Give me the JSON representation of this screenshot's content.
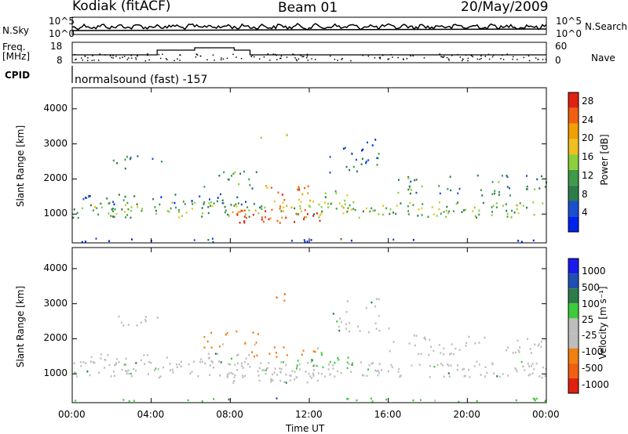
{
  "header": {
    "station": "Kodiak (fitACF)",
    "beam": "Beam 01",
    "date": "20/May/2009"
  },
  "strips": {
    "nsky_label": "N.Sky",
    "nsearch_label": "N.Search",
    "noise_ticks": [
      "10^5",
      "10^0"
    ],
    "freq_label_1": "Freq.",
    "freq_label_2": "[MHz]",
    "freq_ticks": [
      "18",
      "8"
    ],
    "nave_label": "Nave",
    "nave_ticks": [
      "60",
      "0"
    ],
    "cpid_label": "CPID",
    "cpid_text": "normalsound (fast) -157"
  },
  "colors": {
    "power": [
      "#0022ee",
      "#1a4fd0",
      "#2e7b4a",
      "#3f9a4a",
      "#8ccf3a",
      "#f0c020",
      "#f0a000",
      "#f06010",
      "#e02010"
    ],
    "velocity": [
      "#1a1aee",
      "#1f4fb0",
      "#2e7b4a",
      "#3ccc3c",
      "#bdbdbd",
      "#bdbdbd",
      "#f08010",
      "#f06010",
      "#e02010"
    ]
  },
  "chart_data": [
    {
      "type": "heatmap",
      "title": "",
      "ylabel": "Slant Range [km]",
      "xlabel": "",
      "xlim": [
        "00:00",
        "00:00"
      ],
      "ylim": [
        180,
        4600
      ],
      "yticks": [
        "4000",
        "3000",
        "2000",
        "1000"
      ],
      "colorbar_label": "Power [dB]",
      "colorbar_ticks": [
        "28",
        "24",
        "20",
        "16",
        "12",
        "8",
        "4"
      ],
      "colorbar_range": [
        0,
        30
      ]
    },
    {
      "type": "heatmap",
      "title": "",
      "ylabel": "Slant Range [km]",
      "xlabel": "Time UT",
      "xticks": [
        "00:00",
        "04:00",
        "08:00",
        "12:00",
        "16:00",
        "20:00",
        "00:00"
      ],
      "ylim": [
        180,
        4600
      ],
      "yticks": [
        "4000",
        "3000",
        "2000",
        "1000"
      ],
      "colorbar_label": "Velocity [m s⁻¹]",
      "colorbar_ticks": [
        "1000",
        "500",
        "100",
        "25",
        "-25",
        "-100",
        "-500",
        "-1000"
      ],
      "colorbar_range": [
        -1000,
        1000
      ]
    }
  ]
}
